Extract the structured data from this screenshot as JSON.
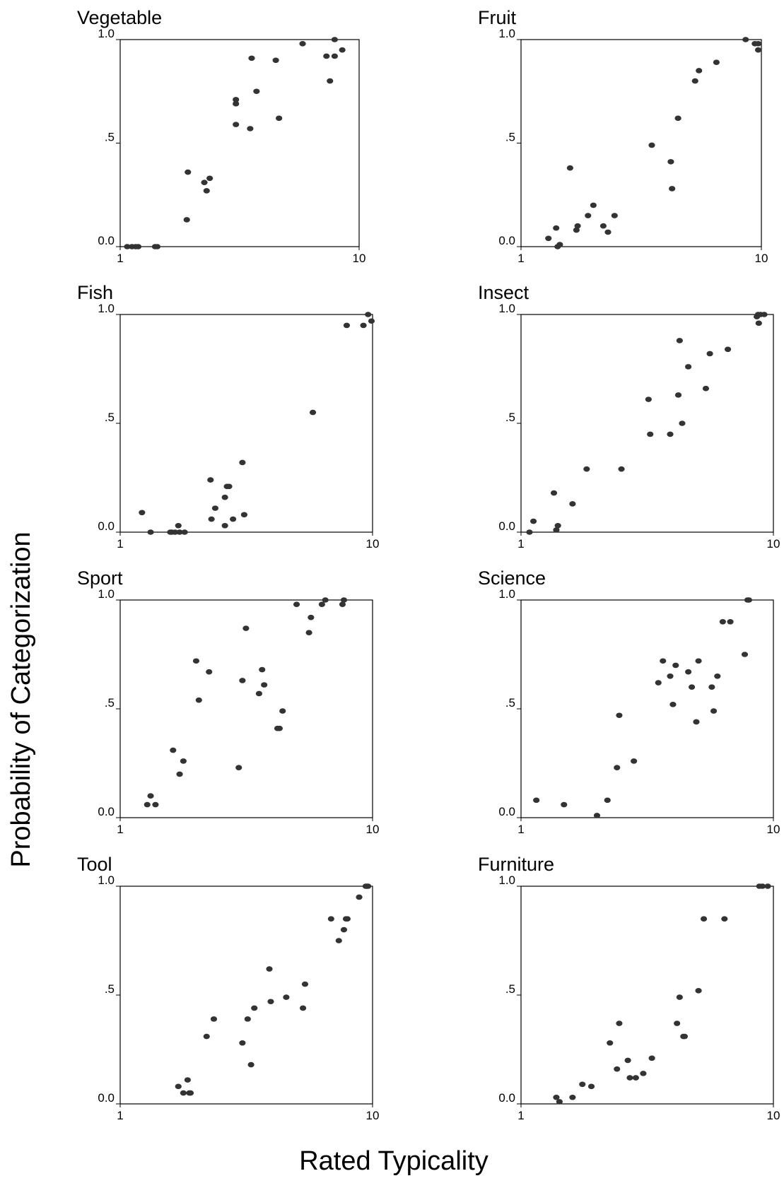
{
  "chart_data": [
    {
      "type": "scatter",
      "title": "Vegetable",
      "xlim": [
        1,
        10
      ],
      "ylim": [
        0,
        1
      ],
      "xticks": [
        "1",
        "10"
      ],
      "yticks": [
        "0.0",
        ".5",
        "1.0"
      ],
      "x_scale": "log",
      "x": [
        1.07,
        1.12,
        1.16,
        1.19,
        1.4,
        1.43,
        1.9,
        1.92,
        2.25,
        2.3,
        2.37,
        3.05,
        3.05,
        3.05,
        3.5,
        3.55,
        3.72,
        4.48,
        4.62,
        5.8,
        7.3,
        7.55,
        7.9,
        7.9,
        8.5
      ],
      "y": [
        0,
        0,
        0,
        0,
        0,
        0,
        0.13,
        0.36,
        0.31,
        0.27,
        0.33,
        0.69,
        0.71,
        0.59,
        0.57,
        0.91,
        0.75,
        0.9,
        0.62,
        0.98,
        0.92,
        0.8,
        0.92,
        1.0,
        0.95
      ]
    },
    {
      "type": "scatter",
      "title": "Fruit",
      "xlim": [
        1,
        10
      ],
      "ylim": [
        0,
        1
      ],
      "xticks": [
        "1",
        "10"
      ],
      "yticks": [
        "0.0",
        ".5",
        "1.0"
      ],
      "x_scale": "log",
      "x": [
        1.3,
        1.4,
        1.42,
        1.45,
        1.6,
        1.7,
        1.72,
        1.9,
        2.0,
        2.2,
        2.3,
        2.45,
        3.5,
        4.2,
        4.25,
        4.5,
        5.3,
        5.5,
        6.5,
        8.6,
        9.4,
        9.7,
        9.7
      ],
      "y": [
        0.04,
        0.09,
        0,
        0.01,
        0.38,
        0.08,
        0.1,
        0.15,
        0.2,
        0.1,
        0.07,
        0.15,
        0.49,
        0.41,
        0.28,
        0.62,
        0.8,
        0.85,
        0.89,
        1.0,
        0.98,
        0.98,
        0.95
      ]
    },
    {
      "type": "scatter",
      "title": "Fish",
      "xlim": [
        1,
        10
      ],
      "ylim": [
        0,
        1
      ],
      "xticks": [
        "1",
        "10"
      ],
      "yticks": [
        "0.0",
        ".5",
        "1.0"
      ],
      "x_scale": "log",
      "x": [
        1.22,
        1.32,
        1.58,
        1.6,
        1.65,
        1.7,
        1.72,
        1.8,
        2.28,
        2.3,
        2.38,
        2.6,
        2.6,
        2.65,
        2.7,
        2.8,
        3.05,
        3.1,
        5.8,
        7.9,
        9.2,
        9.6,
        9.9
      ],
      "y": [
        0.09,
        0,
        0,
        0,
        0,
        0.03,
        0,
        0,
        0.24,
        0.06,
        0.11,
        0.03,
        0.16,
        0.21,
        0.21,
        0.06,
        0.32,
        0.08,
        0.55,
        0.95,
        0.95,
        1.0,
        0.97
      ]
    },
    {
      "type": "scatter",
      "title": "Insect",
      "xlim": [
        1,
        10
      ],
      "ylim": [
        0,
        1
      ],
      "xticks": [
        "1",
        "10"
      ],
      "yticks": [
        "0.0",
        ".5",
        "1.0"
      ],
      "x_scale": "log",
      "x": [
        1.08,
        1.12,
        1.35,
        1.38,
        1.4,
        1.6,
        1.82,
        2.5,
        3.2,
        3.25,
        3.9,
        4.2,
        4.25,
        4.35,
        4.6,
        5.4,
        5.6,
        6.6,
        8.6,
        8.7,
        8.75,
        8.9,
        9.2
      ],
      "y": [
        0,
        0.05,
        0.18,
        0.01,
        0.03,
        0.13,
        0.29,
        0.29,
        0.61,
        0.45,
        0.45,
        0.63,
        0.88,
        0.5,
        0.76,
        0.66,
        0.82,
        0.84,
        0.99,
        1.0,
        0.96,
        1.0,
        1.0
      ]
    },
    {
      "type": "scatter",
      "title": "Sport",
      "xlim": [
        1,
        10
      ],
      "ylim": [
        0,
        1
      ],
      "xticks": [
        "1",
        "10"
      ],
      "yticks": [
        "0.0",
        ".5",
        "1.0"
      ],
      "x_scale": "log",
      "x": [
        1.28,
        1.32,
        1.38,
        1.62,
        1.72,
        1.78,
        2.0,
        2.05,
        2.25,
        2.95,
        3.05,
        3.15,
        3.55,
        3.65,
        3.72,
        4.2,
        4.28,
        4.4,
        5.0,
        5.6,
        5.7,
        6.3,
        6.5,
        7.6,
        7.7
      ],
      "y": [
        0.06,
        0.1,
        0.06,
        0.31,
        0.2,
        0.26,
        0.72,
        0.54,
        0.67,
        0.23,
        0.63,
        0.87,
        0.57,
        0.68,
        0.61,
        0.41,
        0.41,
        0.49,
        0.98,
        0.85,
        0.92,
        0.98,
        1.0,
        0.98,
        1.0
      ]
    },
    {
      "type": "scatter",
      "title": "Science",
      "xlim": [
        1,
        10
      ],
      "ylim": [
        0,
        1
      ],
      "xticks": [
        "1",
        "10"
      ],
      "yticks": [
        "0.0",
        ".5",
        "1.0"
      ],
      "x_scale": "log",
      "x": [
        1.15,
        1.48,
        2.0,
        2.2,
        2.4,
        2.45,
        2.8,
        3.5,
        3.65,
        3.9,
        4.0,
        4.1,
        4.6,
        4.75,
        4.95,
        5.05,
        5.7,
        5.8,
        6.0,
        6.3,
        6.75,
        7.7,
        7.9,
        8.0
      ],
      "y": [
        0.08,
        0.06,
        0.01,
        0.08,
        0.23,
        0.47,
        0.26,
        0.62,
        0.72,
        0.65,
        0.52,
        0.7,
        0.67,
        0.6,
        0.44,
        0.72,
        0.6,
        0.49,
        0.65,
        0.9,
        0.9,
        0.75,
        1.0,
        1.0
      ]
    },
    {
      "type": "scatter",
      "title": "Tool",
      "xlim": [
        1,
        10
      ],
      "ylim": [
        0,
        1
      ],
      "xticks": [
        "1",
        "10"
      ],
      "yticks": [
        "0.0",
        ".5",
        "1.0"
      ],
      "x_scale": "log",
      "x": [
        1.7,
        1.78,
        1.85,
        1.88,
        1.9,
        2.2,
        2.35,
        3.05,
        3.2,
        3.3,
        3.4,
        3.9,
        3.95,
        4.55,
        5.3,
        5.4,
        6.85,
        7.35,
        7.7,
        7.85,
        7.95,
        8.85,
        9.4,
        9.5,
        9.6
      ],
      "y": [
        0.08,
        0.05,
        0.11,
        0.05,
        0.05,
        0.31,
        0.39,
        0.28,
        0.39,
        0.18,
        0.44,
        0.62,
        0.47,
        0.49,
        0.44,
        0.55,
        0.85,
        0.75,
        0.8,
        0.85,
        0.85,
        0.95,
        1.0,
        1.0,
        1.0
      ]
    },
    {
      "type": "scatter",
      "title": "Furniture",
      "xlim": [
        1,
        10
      ],
      "ylim": [
        0,
        1
      ],
      "xticks": [
        "1",
        "10"
      ],
      "yticks": [
        "0.0",
        ".5",
        "1.0"
      ],
      "x_scale": "log",
      "x": [
        1.38,
        1.42,
        1.6,
        1.75,
        1.9,
        2.25,
        2.4,
        2.45,
        2.65,
        2.7,
        2.85,
        3.05,
        3.3,
        4.15,
        4.25,
        4.4,
        4.45,
        5.05,
        5.3,
        6.4,
        8.8,
        9.05,
        9.5
      ],
      "y": [
        0.03,
        0.01,
        0.03,
        0.09,
        0.08,
        0.28,
        0.16,
        0.37,
        0.2,
        0.12,
        0.12,
        0.14,
        0.21,
        0.37,
        0.49,
        0.31,
        0.31,
        0.52,
        0.85,
        0.85,
        1.0,
        1.0,
        1.0
      ]
    }
  ],
  "axes": {
    "ylabel": "Probability of Categorization",
    "xlabel": "Rated Typicality"
  },
  "colors": {
    "marker": "#333333",
    "axis": "#000000"
  }
}
